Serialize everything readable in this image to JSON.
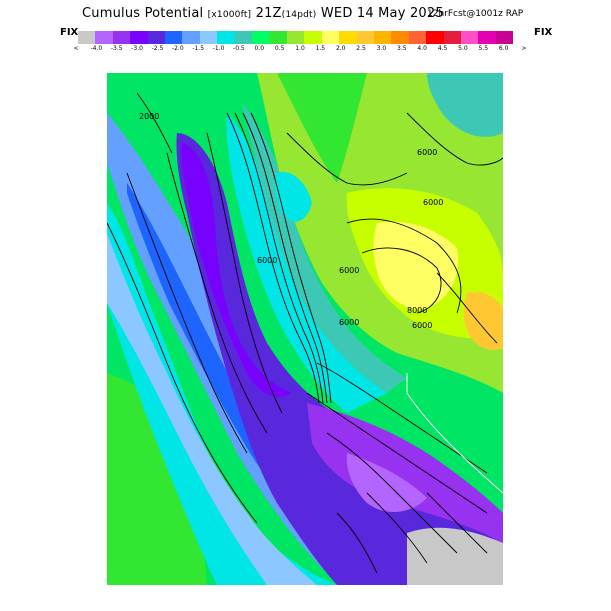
{
  "header": {
    "title_main": "Cumulus Potential",
    "title_units": "[x1000ft]",
    "title_time": "21Z",
    "title_fcst": "(14pdt)",
    "title_date": "WED 14 May 2025",
    "title_model": "12hrFcst@1001z RAP"
  },
  "fix_left": "FIX",
  "fix_right": "FIX",
  "colorbar": {
    "arrow_left": "<",
    "arrow_right": ">",
    "colors": [
      "#c8c8c8",
      "#b464ff",
      "#9632f0",
      "#7800ff",
      "#5a28dc",
      "#1e64ff",
      "#64a0ff",
      "#8cc8ff",
      "#00e6e6",
      "#3cc8b4",
      "#00ff64",
      "#32e632",
      "#96e632",
      "#c8ff00",
      "#ffff64",
      "#ffdc00",
      "#ffc832",
      "#ffb400",
      "#ff8c00",
      "#ff6432",
      "#ff0000",
      "#e61e3c",
      "#ff50c8",
      "#e600b4",
      "#c80096"
    ],
    "tick_labels": [
      "-4.0",
      "-3.5",
      "-3.0",
      "-2.5",
      "-2.0",
      "-1.5",
      "-1.0",
      "-0.5",
      "0.0",
      "0.5",
      "1.0",
      "1.5",
      "2.0",
      "2.5",
      "3.0",
      "3.5",
      "4.0",
      "4.5",
      "5.0",
      "5.5",
      "6.0"
    ]
  },
  "map_labels": {
    "contour_a": "6000",
    "contour_b": "6000",
    "contour_c": "8000",
    "contour_d": "6000",
    "contour_e": "6000",
    "contour_f": "6000",
    "contour_g": "2000",
    "contour_h": "6000"
  }
}
